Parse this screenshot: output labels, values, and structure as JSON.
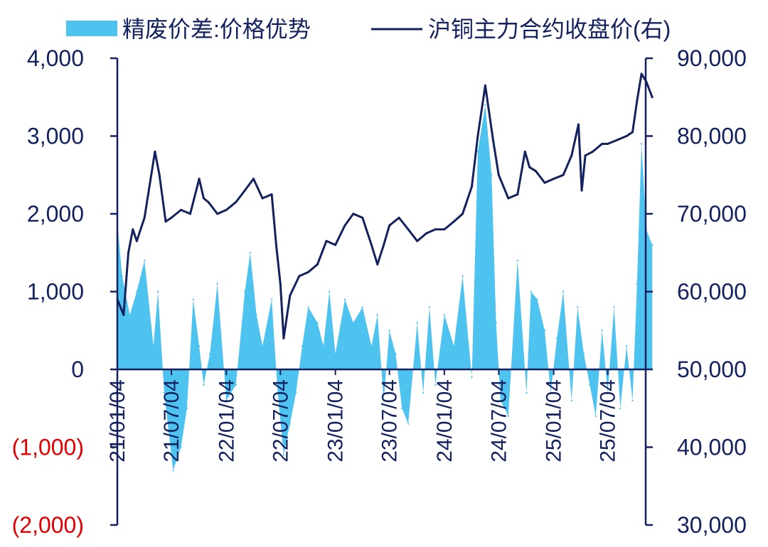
{
  "chart_data": {
    "type": "area+line",
    "legend": [
      {
        "name": "精废价差:价格优势",
        "kind": "area",
        "color": "#4fc3f0"
      },
      {
        "name": "沪铜主力合约收盘价(右)",
        "kind": "line",
        "color": "#14215f"
      }
    ],
    "legend_position": "top",
    "grid": false,
    "y_left": {
      "range": [
        -2000,
        4000
      ],
      "ticks": [
        4000,
        3000,
        2000,
        1000,
        0,
        -1000,
        -2000
      ],
      "tick_labels": [
        "4,000",
        "3,000",
        "2,000",
        "1,000",
        "0",
        "(1,000)",
        "(2,000)"
      ],
      "negative_color": "#e00000"
    },
    "y_right": {
      "range": [
        30000,
        90000
      ],
      "ticks": [
        90000,
        80000,
        70000,
        60000,
        50000,
        40000,
        30000
      ],
      "tick_labels": [
        "90,000",
        "80,000",
        "70,000",
        "60,000",
        "50,000",
        "40,000",
        "30,000"
      ]
    },
    "x_axis": {
      "ticks": [
        "2021-01-04",
        "2021-07-04",
        "2022-01-04",
        "2022-07-04",
        "2023-01-04",
        "2023-07-04",
        "2024-01-04",
        "2024-07-04",
        "2025-01-04",
        "2025-07-04"
      ],
      "tick_labels": [
        "21/01/04",
        "21/07/04",
        "22/01/04",
        "22/07/04",
        "23/01/04",
        "23/07/04",
        "24/01/04",
        "24/07/04",
        "25/01/04",
        "25/07/04"
      ],
      "range": [
        "2021-01-04",
        "2025-11-30"
      ]
    },
    "series": [
      {
        "name": "沪铜主力合约收盘价(右)",
        "axis": "right",
        "x": [
          "2021-01-04",
          "2021-01-25",
          "2021-02-10",
          "2021-02-25",
          "2021-03-10",
          "2021-04-05",
          "2021-05-10",
          "2021-05-25",
          "2021-06-15",
          "2021-07-04",
          "2021-08-05",
          "2021-09-05",
          "2021-10-05",
          "2021-10-20",
          "2021-11-05",
          "2021-12-05",
          "2022-01-04",
          "2022-02-05",
          "2022-03-07",
          "2022-04-05",
          "2022-05-05",
          "2022-06-05",
          "2022-06-20",
          "2022-07-04",
          "2022-07-15",
          "2022-08-05",
          "2022-09-05",
          "2022-10-05",
          "2022-11-05",
          "2022-12-05",
          "2023-01-04",
          "2023-02-05",
          "2023-03-05",
          "2023-04-05",
          "2023-05-05",
          "2023-05-25",
          "2023-06-15",
          "2023-07-04",
          "2023-08-05",
          "2023-09-05",
          "2023-10-05",
          "2023-11-05",
          "2023-12-05",
          "2024-01-04",
          "2024-02-05",
          "2024-03-05",
          "2024-04-05",
          "2024-04-25",
          "2024-05-20",
          "2024-06-15",
          "2024-07-04",
          "2024-08-05",
          "2024-09-05",
          "2024-09-30",
          "2024-10-15",
          "2024-11-05",
          "2024-12-05",
          "2025-01-04",
          "2025-02-05",
          "2025-03-05",
          "2025-03-28",
          "2025-04-08",
          "2025-04-20",
          "2025-05-15",
          "2025-06-15",
          "2025-07-04",
          "2025-08-05",
          "2025-09-05",
          "2025-09-25",
          "2025-10-10",
          "2025-10-25",
          "2025-11-10",
          "2025-11-30"
        ],
        "values": [
          59000,
          57000,
          65000,
          68000,
          66500,
          69500,
          78000,
          75000,
          69000,
          69500,
          70500,
          70000,
          74500,
          72000,
          71500,
          70000,
          70500,
          71500,
          73000,
          74500,
          72000,
          72500,
          66000,
          61000,
          54000,
          59500,
          62000,
          62500,
          63500,
          66500,
          66000,
          68500,
          70000,
          69500,
          66000,
          63500,
          66000,
          68500,
          69500,
          68000,
          66500,
          67500,
          68000,
          68000,
          69000,
          70000,
          73500,
          80000,
          86500,
          79500,
          75000,
          72000,
          72500,
          78000,
          76000,
          75500,
          74000,
          74500,
          75000,
          77500,
          81500,
          73000,
          77500,
          78000,
          79000,
          79000,
          79500,
          80000,
          80500,
          84500,
          88000,
          87000,
          85000
        ]
      },
      {
        "name": "精废价差:价格优势",
        "axis": "left",
        "x": [
          "2021-01-04",
          "2021-01-20",
          "2021-02-15",
          "2021-03-10",
          "2021-04-05",
          "2021-05-05",
          "2021-05-20",
          "2021-06-10",
          "2021-06-25",
          "2021-07-10",
          "2021-08-05",
          "2021-08-25",
          "2021-09-15",
          "2021-10-05",
          "2021-10-20",
          "2021-11-10",
          "2021-12-05",
          "2022-01-04",
          "2022-02-05",
          "2022-03-07",
          "2022-03-25",
          "2022-04-15",
          "2022-05-05",
          "2022-06-05",
          "2022-06-25",
          "2022-07-15",
          "2022-08-05",
          "2022-08-25",
          "2022-09-15",
          "2022-10-05",
          "2022-11-05",
          "2022-11-25",
          "2022-12-15",
          "2023-01-04",
          "2023-02-05",
          "2023-03-05",
          "2023-04-05",
          "2023-05-05",
          "2023-05-25",
          "2023-06-15",
          "2023-07-04",
          "2023-07-25",
          "2023-08-15",
          "2023-09-05",
          "2023-10-05",
          "2023-10-25",
          "2023-11-15",
          "2023-12-05",
          "2024-01-04",
          "2024-02-05",
          "2024-03-05",
          "2024-04-05",
          "2024-04-25",
          "2024-05-20",
          "2024-06-10",
          "2024-06-25",
          "2024-07-10",
          "2024-08-05",
          "2024-09-05",
          "2024-10-05",
          "2024-10-20",
          "2024-11-10",
          "2024-12-05",
          "2024-12-25",
          "2025-01-15",
          "2025-02-05",
          "2025-03-05",
          "2025-03-25",
          "2025-04-15",
          "2025-05-05",
          "2025-05-25",
          "2025-06-15",
          "2025-07-04",
          "2025-07-25",
          "2025-08-15",
          "2025-09-05",
          "2025-09-25",
          "2025-10-10",
          "2025-10-25",
          "2025-11-10",
          "2025-11-30"
        ],
        "values": [
          1900,
          1200,
          700,
          1000,
          1400,
          300,
          1000,
          -300,
          -800,
          -1300,
          -1000,
          -500,
          900,
          300,
          -200,
          200,
          1100,
          -400,
          -200,
          1000,
          1500,
          700,
          300,
          900,
          -300,
          -1100,
          -700,
          -300,
          300,
          800,
          600,
          300,
          1000,
          200,
          900,
          600,
          800,
          300,
          700,
          -400,
          500,
          200,
          -500,
          -700,
          600,
          -300,
          800,
          -200,
          700,
          300,
          1200,
          -100,
          2800,
          3400,
          2500,
          600,
          -400,
          -600,
          1400,
          -300,
          1000,
          900,
          500,
          -300,
          400,
          1000,
          -400,
          800,
          200,
          -200,
          -600,
          500,
          -300,
          800,
          -500,
          300,
          -400,
          1100,
          2900,
          1800,
          1600
        ]
      }
    ]
  }
}
